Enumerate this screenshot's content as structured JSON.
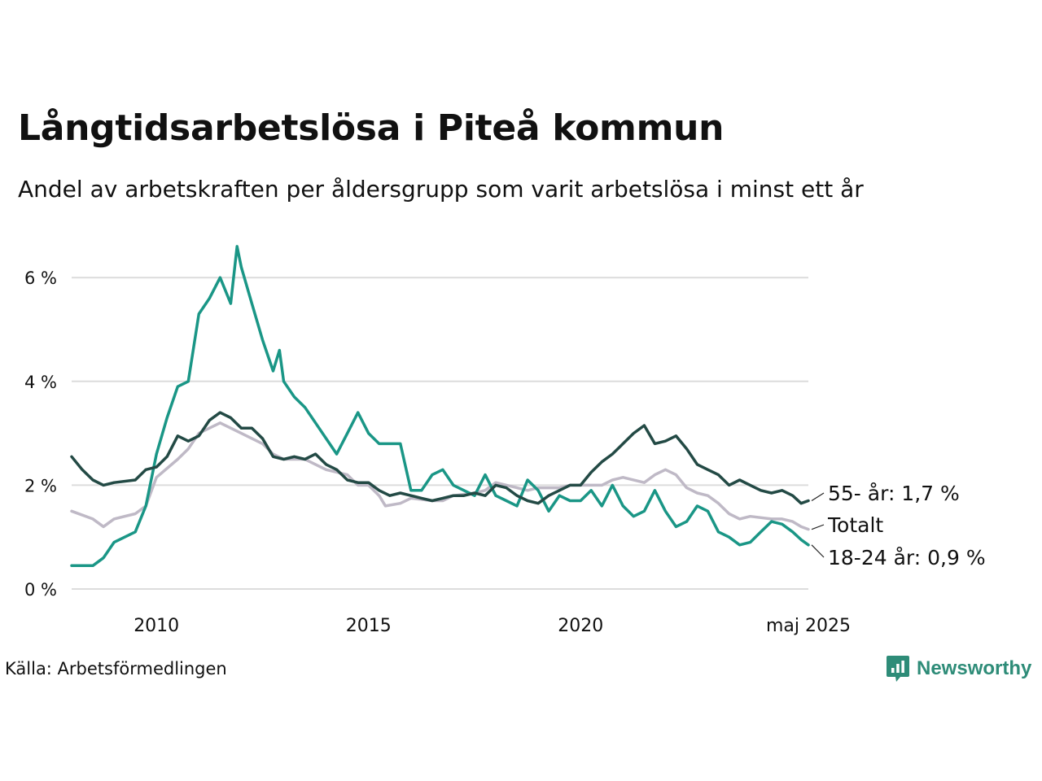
{
  "title": "Långtidsarbetslösa i Piteå kommun",
  "subtitle": "Andel av arbetskraften per åldersgrupp som varit arbetslösa i minst ett år",
  "source": "Källa: Arbetsförmedlingen",
  "brand": {
    "name": "Newsworthy",
    "icon": "newsworthy-logo-icon",
    "color": "#2e8c78"
  },
  "chart_data": {
    "type": "line",
    "ylim": [
      0,
      6.5
    ],
    "xlim": [
      2008.0,
      2025.37
    ],
    "yticks": [
      {
        "value": 0,
        "label": "0 %"
      },
      {
        "value": 2,
        "label": "2 %"
      },
      {
        "value": 4,
        "label": "4 %"
      },
      {
        "value": 6,
        "label": "6 %"
      }
    ],
    "xticks": [
      {
        "value": 2010,
        "label": "2010"
      },
      {
        "value": 2015,
        "label": "2015"
      },
      {
        "value": 2020,
        "label": "2020"
      },
      {
        "value": 2025.37,
        "label": "maj 2025"
      }
    ],
    "grid": "horizontal",
    "series": [
      {
        "name": "Totalt",
        "end_label": "Totalt",
        "color": "#bfb9c6",
        "points": [
          [
            2008.0,
            1.5
          ],
          [
            2008.5,
            1.35
          ],
          [
            2008.75,
            1.2
          ],
          [
            2009.0,
            1.35
          ],
          [
            2009.5,
            1.45
          ],
          [
            2009.75,
            1.6
          ],
          [
            2010.0,
            2.15
          ],
          [
            2010.5,
            2.5
          ],
          [
            2010.75,
            2.7
          ],
          [
            2011.0,
            3.0
          ],
          [
            2011.5,
            3.2
          ],
          [
            2011.75,
            3.1
          ],
          [
            2012.0,
            3.0
          ],
          [
            2012.5,
            2.8
          ],
          [
            2012.75,
            2.6
          ],
          [
            2013.0,
            2.5
          ],
          [
            2013.5,
            2.5
          ],
          [
            2013.75,
            2.4
          ],
          [
            2014.0,
            2.3
          ],
          [
            2014.5,
            2.2
          ],
          [
            2014.75,
            2.0
          ],
          [
            2015.0,
            2.0
          ],
          [
            2015.25,
            1.8
          ],
          [
            2015.4,
            1.6
          ],
          [
            2015.75,
            1.65
          ],
          [
            2016.0,
            1.75
          ],
          [
            2016.5,
            1.7
          ],
          [
            2016.75,
            1.7
          ],
          [
            2017.0,
            1.8
          ],
          [
            2017.5,
            1.85
          ],
          [
            2017.75,
            1.9
          ],
          [
            2018.0,
            2.05
          ],
          [
            2018.5,
            1.95
          ],
          [
            2018.75,
            1.9
          ],
          [
            2019.0,
            1.95
          ],
          [
            2019.5,
            1.95
          ],
          [
            2019.75,
            2.0
          ],
          [
            2020.0,
            2.0
          ],
          [
            2020.5,
            2.0
          ],
          [
            2020.75,
            2.1
          ],
          [
            2021.0,
            2.15
          ],
          [
            2021.5,
            2.05
          ],
          [
            2021.75,
            2.2
          ],
          [
            2022.0,
            2.3
          ],
          [
            2022.25,
            2.2
          ],
          [
            2022.5,
            1.95
          ],
          [
            2022.75,
            1.85
          ],
          [
            2023.0,
            1.8
          ],
          [
            2023.25,
            1.65
          ],
          [
            2023.5,
            1.45
          ],
          [
            2023.75,
            1.35
          ],
          [
            2024.0,
            1.4
          ],
          [
            2024.5,
            1.35
          ],
          [
            2024.75,
            1.35
          ],
          [
            2025.0,
            1.3
          ],
          [
            2025.2,
            1.2
          ],
          [
            2025.37,
            1.15
          ]
        ]
      },
      {
        "name": "18-24 år",
        "end_label": "18-24 år: 0,9 %",
        "color": "#1a9686",
        "points": [
          [
            2008.0,
            0.45
          ],
          [
            2008.5,
            0.45
          ],
          [
            2008.75,
            0.6
          ],
          [
            2009.0,
            0.9
          ],
          [
            2009.5,
            1.1
          ],
          [
            2009.75,
            1.6
          ],
          [
            2010.0,
            2.6
          ],
          [
            2010.25,
            3.3
          ],
          [
            2010.5,
            3.9
          ],
          [
            2010.75,
            4.0
          ],
          [
            2011.0,
            5.3
          ],
          [
            2011.25,
            5.6
          ],
          [
            2011.5,
            6.0
          ],
          [
            2011.75,
            5.5
          ],
          [
            2011.9,
            6.6
          ],
          [
            2012.0,
            6.2
          ],
          [
            2012.25,
            5.5
          ],
          [
            2012.5,
            4.8
          ],
          [
            2012.75,
            4.2
          ],
          [
            2012.9,
            4.6
          ],
          [
            2013.0,
            4.0
          ],
          [
            2013.25,
            3.7
          ],
          [
            2013.5,
            3.5
          ],
          [
            2013.75,
            3.2
          ],
          [
            2014.0,
            2.9
          ],
          [
            2014.25,
            2.6
          ],
          [
            2014.5,
            3.0
          ],
          [
            2014.75,
            3.4
          ],
          [
            2015.0,
            3.0
          ],
          [
            2015.25,
            2.8
          ],
          [
            2015.5,
            2.8
          ],
          [
            2015.75,
            2.8
          ],
          [
            2016.0,
            1.9
          ],
          [
            2016.25,
            1.9
          ],
          [
            2016.5,
            2.2
          ],
          [
            2016.75,
            2.3
          ],
          [
            2017.0,
            2.0
          ],
          [
            2017.25,
            1.9
          ],
          [
            2017.5,
            1.8
          ],
          [
            2017.75,
            2.2
          ],
          [
            2018.0,
            1.8
          ],
          [
            2018.25,
            1.7
          ],
          [
            2018.5,
            1.6
          ],
          [
            2018.75,
            2.1
          ],
          [
            2019.0,
            1.9
          ],
          [
            2019.25,
            1.5
          ],
          [
            2019.5,
            1.8
          ],
          [
            2019.75,
            1.7
          ],
          [
            2020.0,
            1.7
          ],
          [
            2020.25,
            1.9
          ],
          [
            2020.5,
            1.6
          ],
          [
            2020.75,
            2.0
          ],
          [
            2021.0,
            1.6
          ],
          [
            2021.25,
            1.4
          ],
          [
            2021.5,
            1.5
          ],
          [
            2021.75,
            1.9
          ],
          [
            2022.0,
            1.5
          ],
          [
            2022.25,
            1.2
          ],
          [
            2022.5,
            1.3
          ],
          [
            2022.75,
            1.6
          ],
          [
            2023.0,
            1.5
          ],
          [
            2023.25,
            1.1
          ],
          [
            2023.5,
            1.0
          ],
          [
            2023.75,
            0.85
          ],
          [
            2024.0,
            0.9
          ],
          [
            2024.25,
            1.1
          ],
          [
            2024.5,
            1.3
          ],
          [
            2024.75,
            1.25
          ],
          [
            2025.0,
            1.1
          ],
          [
            2025.2,
            0.95
          ],
          [
            2025.37,
            0.85
          ]
        ]
      },
      {
        "name": "55- år",
        "end_label": "55- år: 1,7 %",
        "color": "#234a45",
        "points": [
          [
            2008.0,
            2.55
          ],
          [
            2008.25,
            2.3
          ],
          [
            2008.5,
            2.1
          ],
          [
            2008.75,
            2.0
          ],
          [
            2009.0,
            2.05
          ],
          [
            2009.5,
            2.1
          ],
          [
            2009.75,
            2.3
          ],
          [
            2010.0,
            2.35
          ],
          [
            2010.25,
            2.55
          ],
          [
            2010.5,
            2.95
          ],
          [
            2010.75,
            2.85
          ],
          [
            2011.0,
            2.95
          ],
          [
            2011.25,
            3.25
          ],
          [
            2011.5,
            3.4
          ],
          [
            2011.75,
            3.3
          ],
          [
            2012.0,
            3.1
          ],
          [
            2012.25,
            3.1
          ],
          [
            2012.5,
            2.9
          ],
          [
            2012.75,
            2.55
          ],
          [
            2013.0,
            2.5
          ],
          [
            2013.25,
            2.55
          ],
          [
            2013.5,
            2.5
          ],
          [
            2013.75,
            2.6
          ],
          [
            2014.0,
            2.4
          ],
          [
            2014.25,
            2.3
          ],
          [
            2014.5,
            2.1
          ],
          [
            2014.75,
            2.05
          ],
          [
            2015.0,
            2.05
          ],
          [
            2015.25,
            1.9
          ],
          [
            2015.5,
            1.8
          ],
          [
            2015.75,
            1.85
          ],
          [
            2016.0,
            1.8
          ],
          [
            2016.25,
            1.75
          ],
          [
            2016.5,
            1.7
          ],
          [
            2016.75,
            1.75
          ],
          [
            2017.0,
            1.8
          ],
          [
            2017.25,
            1.8
          ],
          [
            2017.5,
            1.85
          ],
          [
            2017.75,
            1.8
          ],
          [
            2018.0,
            2.0
          ],
          [
            2018.25,
            1.95
          ],
          [
            2018.5,
            1.8
          ],
          [
            2018.75,
            1.7
          ],
          [
            2019.0,
            1.65
          ],
          [
            2019.25,
            1.8
          ],
          [
            2019.5,
            1.9
          ],
          [
            2019.75,
            2.0
          ],
          [
            2020.0,
            2.0
          ],
          [
            2020.25,
            2.25
          ],
          [
            2020.5,
            2.45
          ],
          [
            2020.75,
            2.6
          ],
          [
            2021.0,
            2.8
          ],
          [
            2021.25,
            3.0
          ],
          [
            2021.5,
            3.15
          ],
          [
            2021.75,
            2.8
          ],
          [
            2022.0,
            2.85
          ],
          [
            2022.25,
            2.95
          ],
          [
            2022.5,
            2.7
          ],
          [
            2022.75,
            2.4
          ],
          [
            2023.0,
            2.3
          ],
          [
            2023.25,
            2.2
          ],
          [
            2023.5,
            2.0
          ],
          [
            2023.75,
            2.1
          ],
          [
            2024.0,
            2.0
          ],
          [
            2024.25,
            1.9
          ],
          [
            2024.5,
            1.85
          ],
          [
            2024.75,
            1.9
          ],
          [
            2025.0,
            1.8
          ],
          [
            2025.2,
            1.65
          ],
          [
            2025.37,
            1.7
          ]
        ]
      }
    ]
  }
}
